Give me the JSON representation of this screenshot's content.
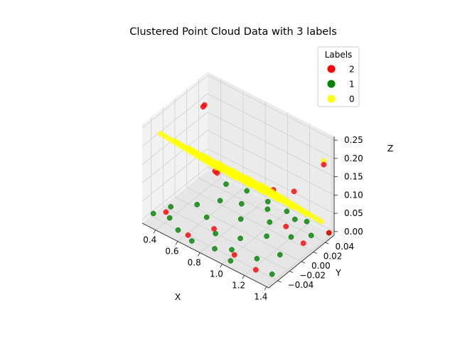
{
  "chart_data": {
    "type": "scatter",
    "projection": "3d",
    "title": "Clustered Point Cloud Data with 3 labels",
    "xlabel": "X",
    "ylabel": "Y",
    "zlabel": "Z",
    "xlim": [
      0.28,
      1.42
    ],
    "ylim": [
      -0.055,
      0.055
    ],
    "zlim": [
      -0.01,
      0.26
    ],
    "xticks": [
      0.4,
      0.6,
      0.8,
      1.0,
      1.2,
      1.4
    ],
    "xtick_labels": [
      "0.4",
      "0.6",
      "0.8",
      "1.0",
      "1.2",
      "1.4"
    ],
    "yticks": [
      -0.04,
      -0.02,
      0.0,
      0.02,
      0.04
    ],
    "ytick_labels": [
      "−0.04",
      "−0.02",
      "0.00",
      "0.02",
      "0.04"
    ],
    "zticks": [
      0.0,
      0.05,
      0.1,
      0.15,
      0.2,
      0.25
    ],
    "ztick_labels": [
      "0.00",
      "0.05",
      "0.10",
      "0.15",
      "0.20",
      "0.25"
    ],
    "grid": true,
    "legend": {
      "title": "Labels",
      "placement": "top-right",
      "entries": [
        {
          "label": "2",
          "color": "#ff0000"
        },
        {
          "label": "1",
          "color": "#008000"
        },
        {
          "label": "0",
          "color": "#ffff00"
        }
      ]
    },
    "series": [
      {
        "name": "0",
        "color": "#ffff00",
        "stripes": [
          {
            "x": 0.42,
            "y_range": [
              -0.05,
              0.05
            ],
            "z_range": [
              0.02,
              0.25
            ]
          },
          {
            "x": 0.55,
            "y_range": [
              -0.05,
              0.05
            ],
            "z_range": [
              0.02,
              0.25
            ]
          },
          {
            "x": 0.68,
            "y_range": [
              -0.05,
              0.05
            ],
            "z_range": [
              0.02,
              0.25
            ]
          },
          {
            "x": 0.81,
            "y_range": [
              -0.05,
              0.05
            ],
            "z_range": [
              0.02,
              0.25
            ]
          },
          {
            "x": 0.94,
            "y_range": [
              -0.05,
              0.05
            ],
            "z_range": [
              0.02,
              0.25
            ]
          },
          {
            "x": 1.07,
            "y_range": [
              -0.05,
              0.05
            ],
            "z_range": [
              0.02,
              0.25
            ]
          },
          {
            "x": 1.2,
            "y_range": [
              -0.05,
              0.05
            ],
            "z_range": [
              0.02,
              0.25
            ]
          },
          {
            "x": 1.33,
            "y_range": [
              -0.05,
              0.05
            ],
            "z_range": [
              0.02,
              0.25
            ]
          }
        ],
        "points_per_stripe": 18,
        "extra_points": [
          {
            "x": 1.38,
            "y": 0.045,
            "z": 0.2
          }
        ]
      },
      {
        "name": "1",
        "color": "#008000",
        "points": [
          {
            "x": 0.3,
            "y": -0.04,
            "z": 0.0
          },
          {
            "x": 0.35,
            "y": -0.02,
            "z": 0.0
          },
          {
            "x": 0.42,
            "y": -0.035,
            "z": 0.0
          },
          {
            "x": 0.48,
            "y": 0.0,
            "z": 0.0
          },
          {
            "x": 0.55,
            "y": -0.045,
            "z": 0.0
          },
          {
            "x": 0.58,
            "y": 0.02,
            "z": 0.0
          },
          {
            "x": 0.62,
            "y": -0.01,
            "z": 0.0
          },
          {
            "x": 0.7,
            "y": -0.05,
            "z": 0.0
          },
          {
            "x": 0.72,
            "y": 0.03,
            "z": 0.0
          },
          {
            "x": 0.78,
            "y": -0.025,
            "z": 0.0
          },
          {
            "x": 0.82,
            "y": 0.01,
            "z": 0.0
          },
          {
            "x": 0.88,
            "y": -0.045,
            "z": 0.0
          },
          {
            "x": 0.9,
            "y": 0.04,
            "z": 0.0
          },
          {
            "x": 0.95,
            "y": -0.015,
            "z": 0.0
          },
          {
            "x": 1.0,
            "y": 0.025,
            "z": 0.0
          },
          {
            "x": 1.05,
            "y": -0.05,
            "z": 0.0
          },
          {
            "x": 1.08,
            "y": 0.005,
            "z": 0.0
          },
          {
            "x": 1.12,
            "y": 0.045,
            "z": 0.0
          },
          {
            "x": 1.18,
            "y": -0.03,
            "z": 0.0
          },
          {
            "x": 1.22,
            "y": 0.02,
            "z": 0.0
          },
          {
            "x": 1.28,
            "y": -0.01,
            "z": 0.0
          },
          {
            "x": 1.32,
            "y": 0.035,
            "z": 0.0
          },
          {
            "x": 1.37,
            "y": -0.04,
            "z": 0.0
          },
          {
            "x": 1.4,
            "y": 0.05,
            "z": 0.0
          },
          {
            "x": 0.5,
            "y": 0.045,
            "z": 0.0
          },
          {
            "x": 0.66,
            "y": 0.05,
            "z": 0.0
          },
          {
            "x": 0.85,
            "y": 0.05,
            "z": 0.0
          },
          {
            "x": 1.02,
            "y": 0.05,
            "z": 0.0
          },
          {
            "x": 1.2,
            "y": 0.05,
            "z": 0.0
          },
          {
            "x": 0.98,
            "y": -0.035,
            "z": 0.0
          }
        ]
      },
      {
        "name": "2",
        "color": "#ff0000",
        "points": [
          {
            "x": 0.32,
            "y": 0.04,
            "z": 0.19
          },
          {
            "x": 0.44,
            "y": 0.02,
            "z": 0.24
          },
          {
            "x": 0.36,
            "y": -0.03,
            "z": 0.0
          },
          {
            "x": 0.4,
            "y": 0.045,
            "z": 0.02
          },
          {
            "x": 0.5,
            "y": 0.03,
            "z": 0.05
          },
          {
            "x": 0.64,
            "y": -0.045,
            "z": 0.0
          },
          {
            "x": 0.74,
            "y": -0.02,
            "z": 0.0
          },
          {
            "x": 0.9,
            "y": 0.05,
            "z": 0.04
          },
          {
            "x": 1.03,
            "y": -0.04,
            "z": 0.0
          },
          {
            "x": 1.12,
            "y": 0.03,
            "z": 0.0
          },
          {
            "x": 1.25,
            "y": -0.045,
            "z": 0.0
          },
          {
            "x": 1.3,
            "y": 0.01,
            "z": 0.15
          },
          {
            "x": 1.38,
            "y": 0.045,
            "z": 0.19
          },
          {
            "x": 1.33,
            "y": 0.02,
            "z": 0.0
          },
          {
            "x": 1.4,
            "y": 0.05,
            "z": 0.0
          }
        ]
      }
    ]
  }
}
